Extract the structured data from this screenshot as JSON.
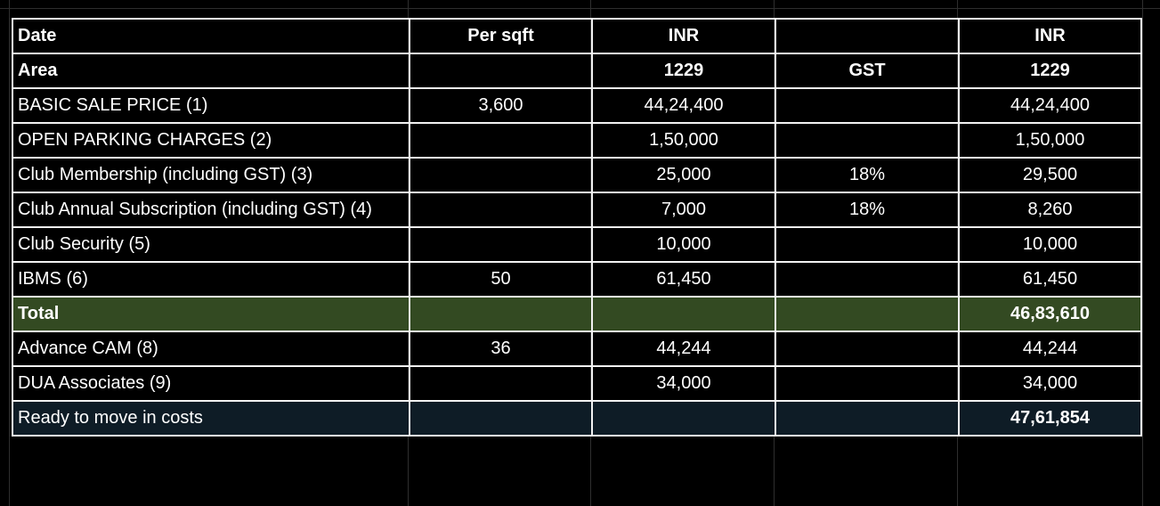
{
  "colors": {
    "background": "#000000",
    "text": "#ffffff",
    "cell_border": "#f2f2f2",
    "total_row_fill": "#334a22",
    "ready_row_fill": "#0e1c26"
  },
  "table": {
    "header_row": {
      "label": "Date",
      "per_sqft": "Per sqft",
      "inr": "INR",
      "gst": "",
      "inr_with_gst": "INR"
    },
    "area_row": {
      "label": "Area",
      "per_sqft": "",
      "inr": "1229",
      "gst": "GST",
      "inr_with_gst": "1229"
    },
    "rows": [
      {
        "label": "BASIC SALE PRICE (1)",
        "per_sqft": "3,600",
        "inr": "44,24,400",
        "gst": "",
        "inr_with_gst": "44,24,400"
      },
      {
        "label": "OPEN PARKING CHARGES (2)",
        "per_sqft": "",
        "inr": "1,50,000",
        "gst": "",
        "inr_with_gst": "1,50,000"
      },
      {
        "label": "Club Membership (including GST) (3)",
        "per_sqft": "",
        "inr": "25,000",
        "gst": "18%",
        "inr_with_gst": "29,500"
      },
      {
        "label": "Club Annual Subscription (including GST) (4)",
        "per_sqft": "",
        "inr": "7,000",
        "gst": "18%",
        "inr_with_gst": "8,260"
      },
      {
        "label": "Club Security (5)",
        "per_sqft": "",
        "inr": "10,000",
        "gst": "",
        "inr_with_gst": "10,000"
      },
      {
        "label": "IBMS (6)",
        "per_sqft": "50",
        "inr": "61,450",
        "gst": "",
        "inr_with_gst": "61,450"
      }
    ],
    "total_row": {
      "label": "Total",
      "per_sqft": "",
      "inr": "",
      "gst": "",
      "inr_with_gst": "46,83,610"
    },
    "extra_rows": [
      {
        "label": "Advance CAM (8)",
        "per_sqft": "36",
        "inr": "44,244",
        "gst": "",
        "inr_with_gst": "44,244"
      },
      {
        "label": "DUA Associates (9)",
        "per_sqft": "",
        "inr": "34,000",
        "gst": "",
        "inr_with_gst": "34,000"
      }
    ],
    "ready_row": {
      "label": "Ready to move in costs",
      "per_sqft": "",
      "inr": "",
      "gst": "",
      "inr_with_gst": "47,61,854"
    }
  }
}
